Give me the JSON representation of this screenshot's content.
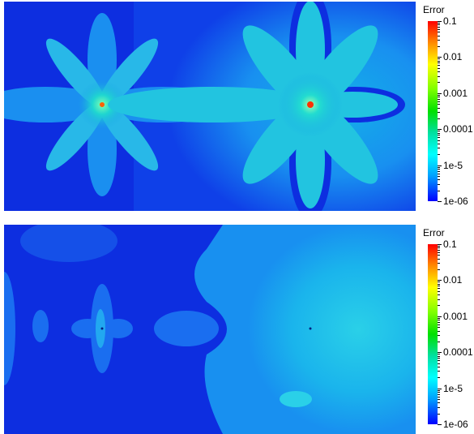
{
  "panels": [
    {
      "colorbar": {
        "title": "Error",
        "ticks": [
          "0.1",
          "0.01",
          "0.001",
          "0.0001",
          "1e-5",
          "1e-06"
        ],
        "min": 1e-06,
        "max": 0.1,
        "scale": "log",
        "colors": [
          "#ff0000",
          "#ffff00",
          "#00e000",
          "#00ffff",
          "#0000ff"
        ]
      }
    },
    {
      "colorbar": {
        "title": "Error",
        "ticks": [
          "0.1",
          "0.01",
          "0.001",
          "0.0001",
          "1e-5",
          "1e-06"
        ],
        "min": 1e-06,
        "max": 0.1,
        "scale": "log",
        "colors": [
          "#ff0000",
          "#ffff00",
          "#00e000",
          "#00ffff",
          "#0000ff"
        ]
      }
    }
  ]
}
